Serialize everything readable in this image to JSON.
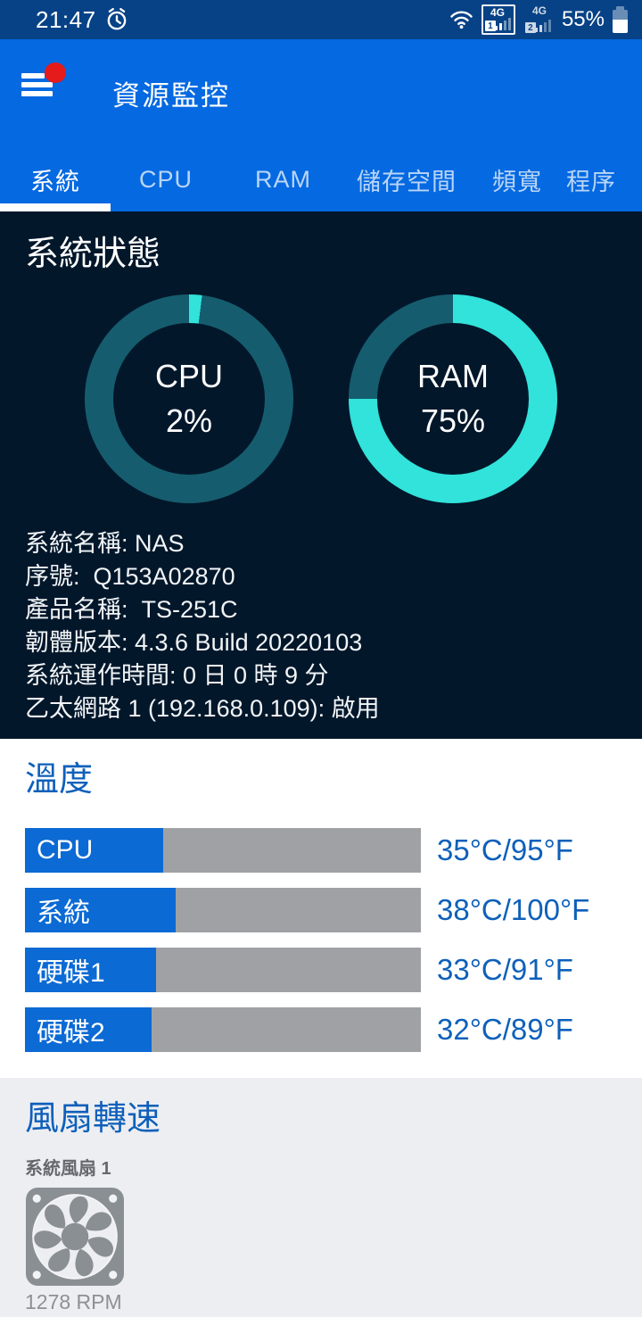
{
  "status_bar": {
    "time": "21:47",
    "battery_percent": "55%",
    "battery_level": 55,
    "sim1": {
      "network": "4G",
      "badge": "1"
    },
    "sim2": {
      "network": "4G",
      "badge": "2"
    }
  },
  "app_bar": {
    "title": "資源監控"
  },
  "tabs": [
    {
      "label": "系統",
      "active": true
    },
    {
      "label": "CPU",
      "active": false
    },
    {
      "label": "RAM",
      "active": false
    },
    {
      "label": "儲存空間",
      "active": false
    },
    {
      "label": "頻寬",
      "active": false
    },
    {
      "label": "程序",
      "active": false
    }
  ],
  "system_status": {
    "heading": "系統狀態",
    "gauges": [
      {
        "label": "CPU",
        "percent": 2,
        "display": "2%"
      },
      {
        "label": "RAM",
        "percent": 75,
        "display": "75%"
      }
    ],
    "info_lines": [
      {
        "text": "系統名稱: NAS"
      },
      {
        "text": "序號:  Q153A02870"
      },
      {
        "text": "產品名稱:  TS-251C"
      },
      {
        "text": "韌體版本: 4.3.6 Build 20220103"
      },
      {
        "text": "系統運作時間: 0 日 0 時 9 分"
      },
      {
        "text": "乙太網路 1 (192.168.0.109): 啟用"
      }
    ]
  },
  "temperature": {
    "heading": "溫度",
    "rows": [
      {
        "label": "CPU",
        "percent": 35,
        "value": "35°C/95°F"
      },
      {
        "label": "系統",
        "percent": 38,
        "value": "38°C/100°F"
      },
      {
        "label": "硬碟1",
        "percent": 33,
        "value": "33°C/91°F"
      },
      {
        "label": "硬碟2",
        "percent": 32,
        "value": "32°C/89°F"
      }
    ]
  },
  "fan": {
    "heading": "風扇轉速",
    "name": "系統風扇 1",
    "rpm": "1278 RPM"
  },
  "colors": {
    "status_bar_blue": "#074286",
    "accent_blue": "#0569e1",
    "dark_navy": "#03172b",
    "gauge_cyan": "#31e3da",
    "gauge_teal": "#155d6e",
    "heading_blue": "#0e60ba",
    "bar_blue": "#0b6ad4",
    "bar_gray": "#9fa1a4",
    "fan_gray": "#8a8f94",
    "section_gray": "#edeef2",
    "alert_red": "#e51a1a"
  }
}
